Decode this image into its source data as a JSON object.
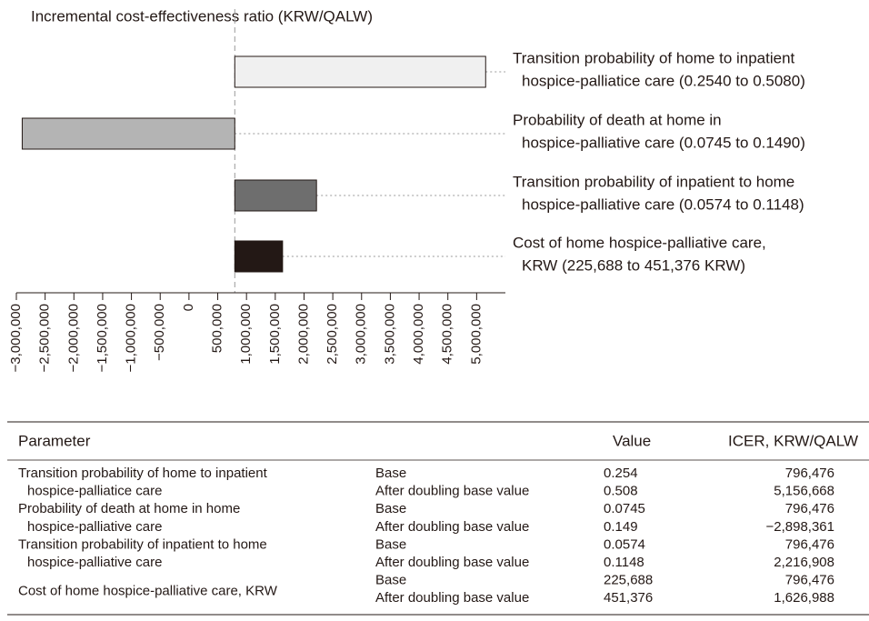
{
  "chart_data": {
    "type": "tornado",
    "title": "Incremental cost-effectiveness ratio (KRW/QALW)",
    "base": 796476,
    "categories": [
      [
        "Transition probability of home to inpatient",
        "hospice-palliatice care (0.2540 to 0.5080)"
      ],
      [
        "Probability of death at home in",
        "hospice-palliative care (0.0745 to 0.1490)"
      ],
      [
        "Transition probability of inpatient to home",
        "hospice-palliative care (0.0574 to 0.1148)"
      ],
      [
        "Cost of home hospice-palliative care,",
        "KRW (225,688 to 451,376 KRW)"
      ]
    ],
    "values": [
      5156668,
      -2898361,
      2216908,
      1626988
    ],
    "colors": [
      "#f0f0f0",
      "#b4b4b4",
      "#6e6e6e",
      "#231815"
    ],
    "xlim": [
      -3000000,
      5500000
    ],
    "xticks": [
      {
        "value": -3000000,
        "label": "−3,000,000"
      },
      {
        "value": -2500000,
        "label": "−2,500,000"
      },
      {
        "value": -2000000,
        "label": "−2,000,000"
      },
      {
        "value": -1500000,
        "label": "−1,500,000"
      },
      {
        "value": -1000000,
        "label": "−1,000,000"
      },
      {
        "value": -500000,
        "label": "−500,000"
      },
      0,
      {
        "value": 500000,
        "label": "500,000"
      },
      {
        "value": 1000000,
        "label": "1,000,000"
      },
      {
        "value": 1500000,
        "label": "1,500,000"
      },
      {
        "value": 2000000,
        "label": "2,000,000"
      },
      {
        "value": 2500000,
        "label": "2,500,000"
      },
      {
        "value": 3000000,
        "label": "3,000,000"
      },
      {
        "value": 3500000,
        "label": "3,500,000"
      },
      {
        "value": 4000000,
        "label": "4,000,000"
      },
      {
        "value": 4500000,
        "label": "4,500,000"
      },
      {
        "value": 5000000,
        "label": "5,000,000"
      }
    ]
  },
  "table": {
    "header": [
      "Parameter",
      "Value",
      "ICER, KRW/QALW"
    ],
    "groups": [
      {
        "parameter": [
          "Transition probability of home to inpatient",
          "hospice-palliatice care"
        ],
        "rows": [
          [
            "Base",
            "0.254",
            "796,476"
          ],
          [
            "After doubling base value",
            "0.508",
            "5,156,668"
          ]
        ]
      },
      {
        "parameter": [
          "Probability of death at home in home",
          "hospice-palliative care"
        ],
        "rows": [
          [
            "Base",
            "0.0745",
            "796,476"
          ],
          [
            "After doubling base value",
            "0.149",
            "−2,898,361"
          ]
        ]
      },
      {
        "parameter": [
          "Transition probability of inpatient to home",
          "hospice-palliative care"
        ],
        "rows": [
          [
            "Base",
            "0.0574",
            "796,476"
          ],
          [
            "After doubling base value",
            "0.1148",
            "2,216,908"
          ]
        ]
      },
      {
        "parameter": [
          "Cost of home hospice-palliative care, KRW"
        ],
        "rows": [
          [
            "Base",
            "225,688",
            "796,476"
          ],
          [
            "After doubling base value",
            "451,376",
            "1,626,988"
          ]
        ]
      }
    ]
  }
}
